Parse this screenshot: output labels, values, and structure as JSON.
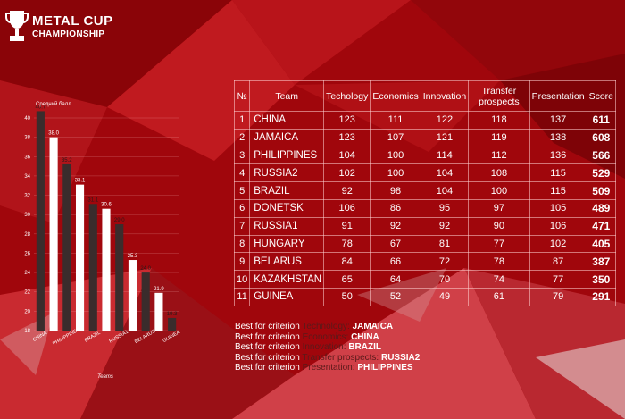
{
  "logo": {
    "title": "METAL CUP",
    "subtitle": "CHAMPIONSHIP"
  },
  "colors": {
    "bar_dark": "#3a2c2c",
    "bar_white": "#ffffff",
    "background": "#a0060c"
  },
  "chart_data": {
    "type": "bar",
    "ylabel": "Средний балл",
    "xlabel": "Teams",
    "ylim": [
      18,
      40
    ],
    "yticks": [
      18,
      20,
      22,
      24,
      26,
      28,
      30,
      32,
      34,
      36,
      38,
      40
    ],
    "categories": [
      "CHINA",
      "JAMAICA",
      "PHILIPPINES",
      "RUSSIA2",
      "BRAZIL",
      "DONETSK",
      "RUSSIA1",
      "HUNGARY",
      "BELARUS",
      "KAZAKHSTAN",
      "GUINEA"
    ],
    "category_labels_shown": [
      "CHINA",
      "PHILIPPINES",
      "BRAZIL",
      "RUSSIA1",
      "BELARUS",
      "GUINEA"
    ],
    "values": [
      40.7,
      38.0,
      35.2,
      33.1,
      31.1,
      30.6,
      29.0,
      25.3,
      24.0,
      21.9,
      19.3
    ],
    "data_labels": [
      "40.7",
      "38.0",
      "35.2",
      "33.1",
      "31.1",
      "30.6",
      "29.0",
      "25.3",
      "24.0",
      "21.9",
      "19.3"
    ]
  },
  "table": {
    "headers": [
      "№",
      "Team",
      "Techology",
      "Economics",
      "Innovation",
      "Transfer prospects",
      "Presentation",
      "Score"
    ],
    "rows": [
      [
        "1",
        "CHINA",
        "123",
        "111",
        "122",
        "118",
        "137",
        "611"
      ],
      [
        "2",
        "JAMAICA",
        "123",
        "107",
        "121",
        "119",
        "138",
        "608"
      ],
      [
        "3",
        "PHILIPPINES",
        "104",
        "100",
        "114",
        "112",
        "136",
        "566"
      ],
      [
        "4",
        "RUSSIA2",
        "102",
        "100",
        "104",
        "108",
        "115",
        "529"
      ],
      [
        "5",
        "BRAZIL",
        "92",
        "98",
        "104",
        "100",
        "115",
        "509"
      ],
      [
        "6",
        "DONETSK",
        "106",
        "86",
        "95",
        "97",
        "105",
        "489"
      ],
      [
        "7",
        "RUSSIA1",
        "91",
        "92",
        "92",
        "90",
        "106",
        "471"
      ],
      [
        "8",
        "HUNGARY",
        "78",
        "67",
        "81",
        "77",
        "102",
        "405"
      ],
      [
        "9",
        "BELARUS",
        "84",
        "66",
        "72",
        "78",
        "87",
        "387"
      ],
      [
        "10",
        "KAZAKHSTAN",
        "65",
        "64",
        "70",
        "74",
        "77",
        "350"
      ],
      [
        "11",
        "GUINEA",
        "50",
        "52",
        "49",
        "61",
        "79",
        "291"
      ]
    ]
  },
  "best": {
    "prefix": "Best for criterion",
    "items": [
      {
        "criterion": "Technology:",
        "team": "JAMAICA"
      },
      {
        "criterion": "Economics:",
        "team": "CHINA"
      },
      {
        "criterion": "Innovation:",
        "team": "BRAZIL"
      },
      {
        "criterion": "Transfer prospects:",
        "team": "RUSSIA2"
      },
      {
        "criterion": "Presentation:",
        "team": "PHILIPPINES"
      }
    ]
  }
}
